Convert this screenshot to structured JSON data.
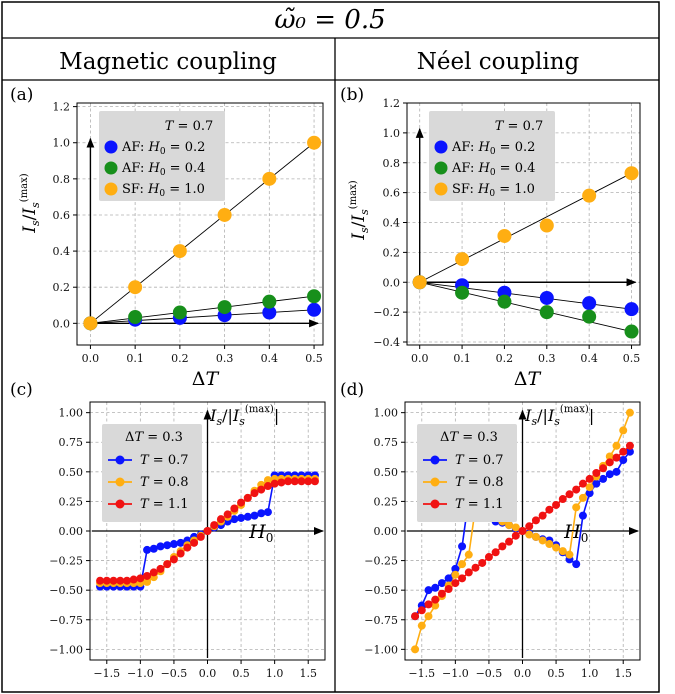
{
  "header": {
    "title": "ω̃₀ = 0.5",
    "col_left": "Magnetic coupling",
    "col_right": "Néel coupling"
  },
  "colors": {
    "AF_blue": "#0a14ff",
    "AF_green": "#178f1b",
    "SF_orange": "#ffae12",
    "T07_blue": "#0a14ff",
    "T08_orange": "#ffae12",
    "T11_red": "#f01212"
  },
  "chart_data": [
    {
      "panel": "(a)",
      "type": "scatter",
      "xlabel": "ΔT",
      "ylabel": "Is/Is(max)",
      "xlim": [
        -0.03,
        0.52
      ],
      "ylim": [
        -0.12,
        1.22
      ],
      "xticks": [
        "0.0",
        "0.1",
        "0.2",
        "0.3",
        "0.4",
        "0.5"
      ],
      "xtick_values": [
        0,
        0.1,
        0.2,
        0.3,
        0.4,
        0.5
      ],
      "yticks": [
        "0.0",
        "0.2",
        "0.4",
        "0.6",
        "0.8",
        "1.0",
        "1.2"
      ],
      "ytick_values": [
        0,
        0.2,
        0.4,
        0.6,
        0.8,
        1.0,
        1.2
      ],
      "grid": true,
      "legend_title": "T = 0.7",
      "legend_position": "top-left",
      "x": [
        0,
        0.1,
        0.2,
        0.3,
        0.4,
        0.5
      ],
      "series": [
        {
          "name": "AF: H0 = 0.2",
          "color": "#0a14ff",
          "values": [
            0,
            0.02,
            0.03,
            0.045,
            0.06,
            0.075
          ]
        },
        {
          "name": "AF: H0 = 0.4",
          "color": "#178f1b",
          "values": [
            0,
            0.035,
            0.06,
            0.09,
            0.12,
            0.15
          ]
        },
        {
          "name": "SF: H0 = 1.0",
          "color": "#ffae12",
          "values": [
            0,
            0.2,
            0.4,
            0.6,
            0.8,
            1.0
          ]
        }
      ],
      "fit_lines": true
    },
    {
      "panel": "(b)",
      "type": "scatter",
      "xlabel": "ΔT",
      "ylabel": "Is/Is(max)",
      "xlim": [
        -0.03,
        0.52
      ],
      "ylim": [
        -0.42,
        1.2
      ],
      "xticks": [
        "0.0",
        "0.1",
        "0.2",
        "0.3",
        "0.4",
        "0.5"
      ],
      "xtick_values": [
        0,
        0.1,
        0.2,
        0.3,
        0.4,
        0.5
      ],
      "yticks": [
        "−0.4",
        "−0.2",
        "0.0",
        "0.2",
        "0.4",
        "0.6",
        "0.8",
        "1.0",
        "1.2"
      ],
      "ytick_values": [
        -0.4,
        -0.2,
        0,
        0.2,
        0.4,
        0.6,
        0.8,
        1.0,
        1.2
      ],
      "grid": true,
      "legend_title": "T = 0.7",
      "legend_position": "top-left",
      "x": [
        0,
        0.1,
        0.2,
        0.3,
        0.4,
        0.5
      ],
      "series": [
        {
          "name": "AF: H0 = 0.2",
          "color": "#0a14ff",
          "values": [
            0,
            -0.02,
            -0.07,
            -0.105,
            -0.14,
            -0.18
          ]
        },
        {
          "name": "AF: H0 = 0.4",
          "color": "#178f1b",
          "values": [
            0,
            -0.07,
            -0.13,
            -0.2,
            -0.23,
            -0.33
          ]
        },
        {
          "name": "SF: H0 = 1.0",
          "color": "#ffae12",
          "values": [
            0,
            0.155,
            0.31,
            0.38,
            0.58,
            0.73
          ]
        }
      ],
      "fit_lines": true
    },
    {
      "panel": "(c)",
      "type": "line",
      "xlabel": "H0",
      "ylabel": "Is/|Is(max)|",
      "xlim": [
        -1.75,
        1.75
      ],
      "ylim": [
        -1.09,
        1.09
      ],
      "xticks": [
        "−1.5",
        "−1.0",
        "−0.5",
        "0.0",
        "0.5",
        "1.0",
        "1.5"
      ],
      "xtick_values": [
        -1.5,
        -1.0,
        -0.5,
        0,
        0.5,
        1.0,
        1.5
      ],
      "yticks": [
        "−1.00",
        "−0.75",
        "−0.50",
        "−0.25",
        "0.00",
        "0.25",
        "0.50",
        "0.75",
        "1.00"
      ],
      "ytick_values": [
        -1.0,
        -0.75,
        -0.5,
        -0.25,
        0,
        0.25,
        0.5,
        0.75,
        1.0
      ],
      "grid": true,
      "legend_title": "ΔT = 0.3",
      "legend_position": "top-left",
      "x": [
        -1.6,
        -1.5,
        -1.4,
        -1.3,
        -1.2,
        -1.1,
        -1.0,
        -0.9,
        -0.8,
        -0.7,
        -0.6,
        -0.5,
        -0.4,
        -0.3,
        -0.2,
        -0.1,
        0.0,
        0.1,
        0.2,
        0.3,
        0.4,
        0.5,
        0.6,
        0.7,
        0.8,
        0.9,
        1.0,
        1.1,
        1.2,
        1.3,
        1.4,
        1.5,
        1.6
      ],
      "series": [
        {
          "name": "T = 0.7",
          "color": "#0a14ff",
          "values": [
            -0.47,
            -0.47,
            -0.47,
            -0.47,
            -0.47,
            -0.47,
            -0.47,
            -0.16,
            -0.15,
            -0.13,
            -0.12,
            -0.11,
            -0.1,
            -0.08,
            -0.05,
            -0.03,
            0.0,
            0.03,
            0.05,
            0.08,
            0.1,
            0.11,
            0.12,
            0.13,
            0.15,
            0.16,
            0.47,
            0.47,
            0.47,
            0.47,
            0.47,
            0.47,
            0.47
          ]
        },
        {
          "name": "T = 0.8",
          "color": "#ffae12",
          "values": [
            -0.44,
            -0.44,
            -0.44,
            -0.44,
            -0.44,
            -0.44,
            -0.44,
            -0.43,
            -0.39,
            -0.34,
            -0.28,
            -0.22,
            -0.17,
            -0.12,
            -0.08,
            -0.04,
            0.0,
            0.04,
            0.08,
            0.12,
            0.17,
            0.22,
            0.28,
            0.34,
            0.39,
            0.43,
            0.44,
            0.44,
            0.44,
            0.44,
            0.44,
            0.44,
            0.44
          ]
        },
        {
          "name": "T = 1.1",
          "color": "#f01212",
          "values": [
            -0.42,
            -0.42,
            -0.42,
            -0.42,
            -0.42,
            -0.41,
            -0.4,
            -0.38,
            -0.35,
            -0.32,
            -0.28,
            -0.24,
            -0.19,
            -0.14,
            -0.1,
            -0.05,
            0.0,
            0.05,
            0.1,
            0.14,
            0.19,
            0.24,
            0.28,
            0.32,
            0.35,
            0.38,
            0.4,
            0.41,
            0.42,
            0.42,
            0.42,
            0.42,
            0.42
          ]
        }
      ]
    },
    {
      "panel": "(d)",
      "type": "line",
      "xlabel": "H0",
      "ylabel": "Is/|Is(max)|",
      "xlim": [
        -1.75,
        1.75
      ],
      "ylim": [
        -1.09,
        1.09
      ],
      "xticks": [
        "−1.5",
        "−1.0",
        "−0.5",
        "0.0",
        "0.5",
        "1.0",
        "1.5"
      ],
      "xtick_values": [
        -1.5,
        -1.0,
        -0.5,
        0,
        0.5,
        1.0,
        1.5
      ],
      "yticks": [
        "−1.00",
        "−0.75",
        "−0.50",
        "−0.25",
        "0.00",
        "0.25",
        "0.50",
        "0.75",
        "1.00"
      ],
      "ytick_values": [
        -1.0,
        -0.75,
        -0.5,
        -0.25,
        0,
        0.25,
        0.5,
        0.75,
        1.0
      ],
      "grid": true,
      "legend_title": "ΔT = 0.3",
      "legend_position": "top-left",
      "x": [
        -1.6,
        -1.5,
        -1.4,
        -1.3,
        -1.2,
        -1.1,
        -1.0,
        -0.9,
        -0.8,
        -0.7,
        -0.6,
        -0.5,
        -0.4,
        -0.3,
        -0.2,
        -0.1,
        0.0,
        0.1,
        0.2,
        0.3,
        0.4,
        0.5,
        0.6,
        0.7,
        0.8,
        0.9,
        1.0,
        1.1,
        1.2,
        1.3,
        1.4,
        1.5,
        1.6
      ],
      "series": [
        {
          "name": "T = 0.7",
          "color": "#0a14ff",
          "values": [
            -0.72,
            -0.63,
            -0.5,
            -0.48,
            -0.44,
            -0.4,
            -0.32,
            -0.13,
            0.28,
            0.24,
            0.18,
            0.12,
            0.08,
            0.07,
            0.05,
            0.02,
            0.0,
            -0.02,
            -0.05,
            -0.07,
            -0.08,
            -0.12,
            -0.18,
            -0.24,
            -0.28,
            0.13,
            0.32,
            0.4,
            0.44,
            0.48,
            0.5,
            0.6,
            0.67
          ]
        },
        {
          "name": "T = 0.8",
          "color": "#ffae12",
          "values": [
            -1.0,
            -0.8,
            -0.72,
            -0.63,
            -0.55,
            -0.46,
            -0.37,
            -0.28,
            -0.2,
            0.2,
            0.17,
            0.14,
            0.11,
            0.08,
            0.05,
            0.03,
            0.0,
            -0.03,
            -0.05,
            -0.08,
            -0.11,
            -0.14,
            -0.17,
            -0.2,
            0.2,
            0.28,
            0.37,
            0.46,
            0.55,
            0.63,
            0.72,
            0.85,
            1.0
          ]
        },
        {
          "name": "T = 1.1",
          "color": "#f01212",
          "values": [
            -0.72,
            -0.67,
            -0.62,
            -0.58,
            -0.53,
            -0.49,
            -0.44,
            -0.4,
            -0.35,
            -0.31,
            -0.27,
            -0.22,
            -0.18,
            -0.13,
            -0.09,
            -0.04,
            0.0,
            0.04,
            0.09,
            0.13,
            0.18,
            0.22,
            0.27,
            0.31,
            0.35,
            0.4,
            0.44,
            0.49,
            0.53,
            0.58,
            0.62,
            0.67,
            0.72
          ]
        }
      ]
    }
  ]
}
